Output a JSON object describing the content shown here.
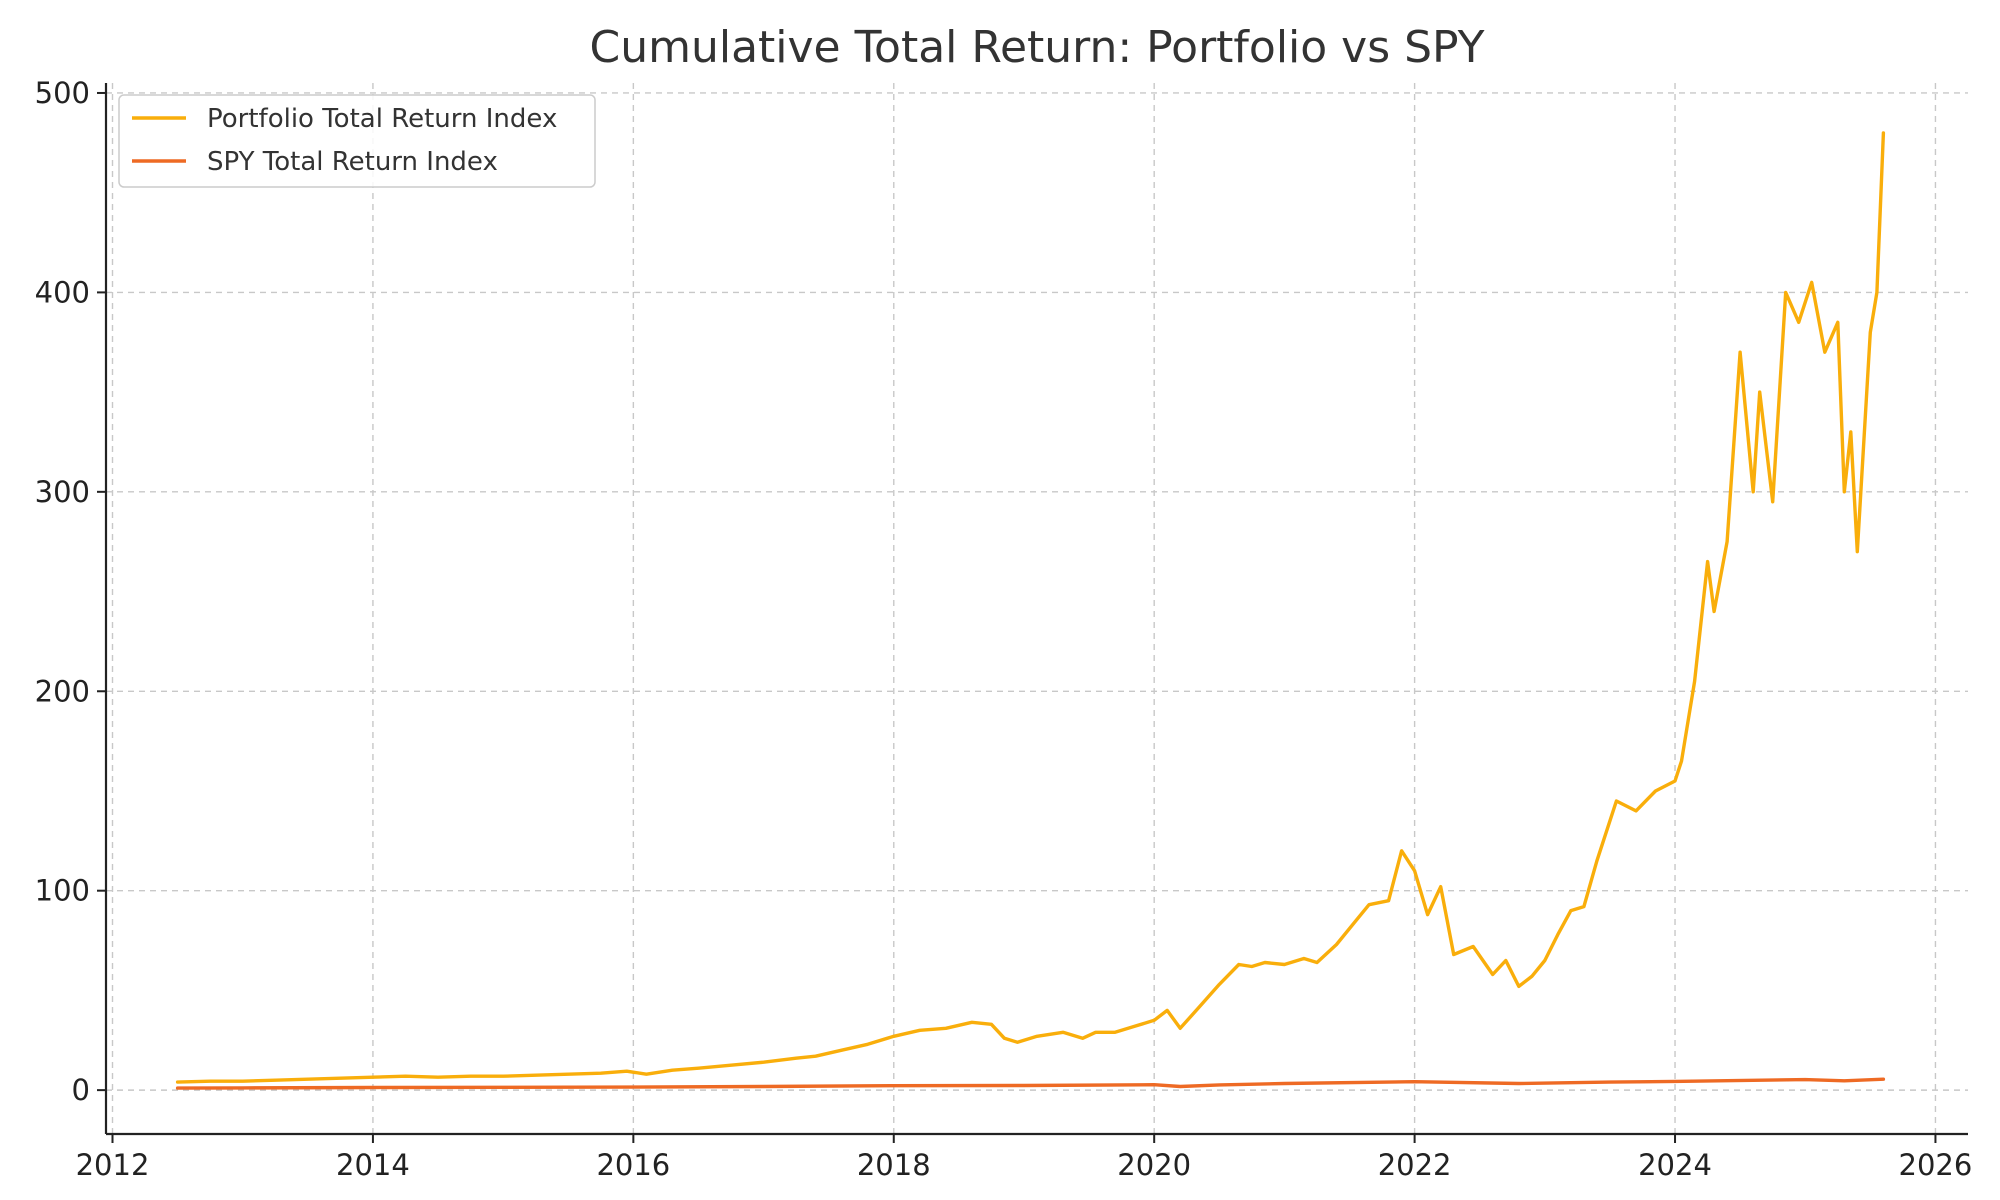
{
  "chart_data": {
    "type": "line",
    "title": "Cumulative Total Return: Portfolio vs SPY",
    "xlabel": "",
    "ylabel": "",
    "xlim": [
      2011.95,
      2026.25
    ],
    "ylim": [
      -22,
      505
    ],
    "x_ticks": [
      2012,
      2014,
      2016,
      2018,
      2020,
      2022,
      2024,
      2026
    ],
    "y_ticks": [
      0,
      100,
      200,
      300,
      400,
      500
    ],
    "grid": true,
    "legend_position": "top-left",
    "series": [
      {
        "name": "Portfolio Total Return Index",
        "color": "#F9AE0B",
        "x": [
          2012.5,
          2012.75,
          2013.0,
          2013.25,
          2013.5,
          2013.75,
          2014.0,
          2014.25,
          2014.5,
          2014.75,
          2015.0,
          2015.25,
          2015.5,
          2015.75,
          2015.95,
          2016.1,
          2016.3,
          2016.5,
          2016.75,
          2017.0,
          2017.25,
          2017.4,
          2017.6,
          2017.8,
          2018.0,
          2018.2,
          2018.4,
          2018.6,
          2018.75,
          2018.85,
          2018.95,
          2019.1,
          2019.3,
          2019.45,
          2019.55,
          2019.7,
          2019.85,
          2020.0,
          2020.1,
          2020.2,
          2020.35,
          2020.5,
          2020.65,
          2020.75,
          2020.85,
          2021.0,
          2021.15,
          2021.25,
          2021.4,
          2021.55,
          2021.65,
          2021.8,
          2021.9,
          2022.0,
          2022.1,
          2022.2,
          2022.3,
          2022.45,
          2022.6,
          2022.7,
          2022.8,
          2022.9,
          2023.0,
          2023.1,
          2023.2,
          2023.3,
          2023.4,
          2023.55,
          2023.7,
          2023.85,
          2024.0,
          2024.05,
          2024.15,
          2024.25,
          2024.3,
          2024.4,
          2024.5,
          2024.6,
          2024.65,
          2024.75,
          2024.85,
          2024.95,
          2025.05,
          2025.15,
          2025.25,
          2025.3,
          2025.35,
          2025.4,
          2025.5,
          2025.55,
          2025.6
        ],
        "values": [
          4,
          4.5,
          4.5,
          5,
          5.5,
          6,
          6.5,
          7,
          6.5,
          7,
          7,
          7.5,
          8,
          8.5,
          9.5,
          8,
          10,
          11,
          12.5,
          14,
          16,
          17,
          20,
          23,
          27,
          30,
          31,
          34,
          33,
          26,
          24,
          27,
          29,
          26,
          29,
          29,
          32,
          35,
          40,
          31,
          42,
          53,
          63,
          62,
          64,
          63,
          66,
          64,
          73,
          85,
          93,
          95,
          120,
          110,
          88,
          102,
          68,
          72,
          58,
          65,
          52,
          57,
          65,
          78,
          90,
          92,
          115,
          145,
          140,
          150,
          155,
          165,
          205,
          265,
          240,
          275,
          370,
          300,
          350,
          295,
          400,
          385,
          405,
          370,
          385,
          300,
          330,
          270,
          380,
          400,
          480
        ]
      },
      {
        "name": "SPY Total Return Index",
        "color": "#EE6A24",
        "x": [
          2012.5,
          2013.0,
          2014.0,
          2015.0,
          2016.0,
          2017.0,
          2018.0,
          2019.0,
          2020.0,
          2020.2,
          2020.5,
          2021.0,
          2022.0,
          2022.8,
          2023.5,
          2024.0,
          2025.0,
          2025.3,
          2025.6
        ],
        "values": [
          1,
          1.1,
          1.3,
          1.4,
          1.5,
          1.8,
          2.2,
          2.3,
          2.7,
          1.8,
          2.6,
          3.3,
          4.2,
          3.3,
          4.0,
          4.4,
          5.3,
          4.7,
          5.5
        ]
      }
    ]
  }
}
